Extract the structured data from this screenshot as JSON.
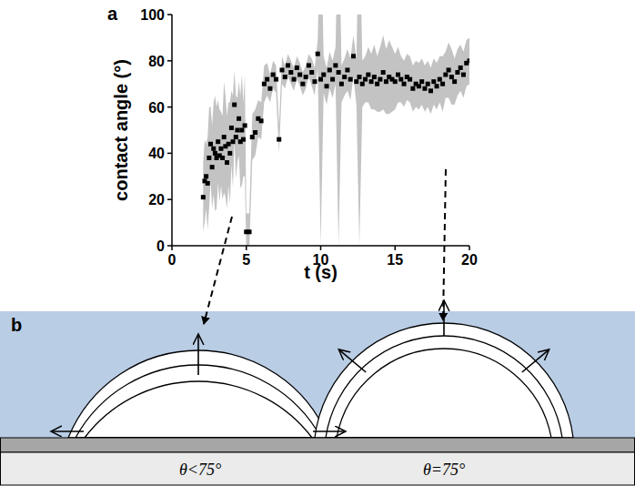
{
  "chart_data": {
    "type": "scatter",
    "panel": "a",
    "xlabel": "t (s)",
    "ylabel": "contact angle (°)",
    "xlim": [
      0,
      20
    ],
    "ylim": [
      0,
      100
    ],
    "xticks": [
      0,
      5,
      10,
      15,
      20
    ],
    "yticks": [
      0,
      20,
      40,
      60,
      80,
      100
    ],
    "grid": false,
    "series": [
      {
        "color": "#000000",
        "marker": "square",
        "x": [
          2.1,
          2.2,
          2.3,
          2.4,
          2.5,
          2.6,
          2.7,
          2.8,
          2.9,
          3.0,
          3.1,
          3.2,
          3.3,
          3.4,
          3.5,
          3.6,
          3.7,
          3.8,
          3.9,
          4.0,
          4.1,
          4.2,
          4.3,
          4.4,
          4.5,
          4.6,
          4.7,
          4.8,
          4.9,
          5.0,
          5.2,
          5.4,
          5.6,
          5.8,
          6.0,
          6.2,
          6.4,
          6.6,
          6.8,
          7.0,
          7.2,
          7.4,
          7.6,
          7.8,
          8.0,
          8.2,
          8.4,
          8.6,
          8.8,
          9.0,
          9.2,
          9.4,
          9.6,
          9.8,
          10.0,
          10.2,
          10.4,
          10.6,
          10.8,
          11.0,
          11.2,
          11.4,
          11.6,
          11.8,
          12.0,
          12.2,
          12.4,
          12.6,
          12.8,
          13.0,
          13.2,
          13.4,
          13.6,
          13.8,
          14.0,
          14.2,
          14.4,
          14.6,
          14.8,
          15.0,
          15.2,
          15.4,
          15.6,
          15.8,
          16.0,
          16.2,
          16.4,
          16.6,
          16.8,
          17.0,
          17.2,
          17.4,
          17.6,
          17.8,
          18.0,
          18.2,
          18.4,
          18.6,
          18.8,
          19.0,
          19.2,
          19.4,
          19.6,
          19.8,
          20.0
        ],
        "values": [
          21,
          28,
          30,
          27,
          38,
          44,
          34,
          42,
          40,
          38,
          45,
          39,
          42,
          38,
          47,
          43,
          36,
          44,
          40,
          51,
          45,
          61,
          47,
          50,
          55,
          45,
          50,
          46,
          52,
          6,
          6,
          47,
          49,
          55,
          54,
          70,
          72,
          68,
          74,
          72,
          46,
          76,
          73,
          78,
          75,
          72,
          77,
          74,
          70,
          73,
          78,
          75,
          71,
          83,
          72,
          74,
          69,
          76,
          72,
          78,
          75,
          70,
          73,
          76,
          72,
          82,
          71,
          73,
          70,
          72,
          74,
          71,
          73,
          70,
          72,
          75,
          71,
          73,
          72,
          71,
          74,
          72,
          70,
          73,
          72,
          68,
          70,
          69,
          71,
          68,
          70,
          67,
          71,
          69,
          72,
          70,
          74,
          76,
          73,
          71,
          75,
          77,
          74,
          79,
          80
        ],
        "error": [
          15,
          18,
          14,
          20,
          22,
          16,
          18,
          20,
          25,
          22,
          18,
          20,
          16,
          18,
          24,
          22,
          20,
          18,
          22,
          16,
          20,
          15,
          18,
          14,
          16,
          20,
          24,
          16,
          22,
          8,
          8,
          10,
          10,
          8,
          8,
          8,
          7,
          6,
          6,
          6,
          6,
          6,
          5,
          5,
          5,
          5,
          5,
          5,
          5,
          5,
          5,
          6,
          6,
          6,
          72,
          8,
          8,
          8,
          8,
          8,
          75,
          8,
          8,
          9,
          9,
          9,
          10,
          73,
          10,
          10,
          12,
          12,
          14,
          12,
          14,
          16,
          14,
          16,
          14,
          12,
          12,
          10,
          10,
          10,
          10,
          10,
          10,
          10,
          10,
          10,
          10,
          10,
          10,
          10,
          10,
          12,
          10,
          12,
          12,
          10,
          10,
          10,
          10,
          10,
          10
        ]
      }
    ]
  },
  "diagram": {
    "panel": "b",
    "drops": [
      {
        "label": "θ<75°"
      },
      {
        "label": "θ=75°"
      }
    ]
  }
}
